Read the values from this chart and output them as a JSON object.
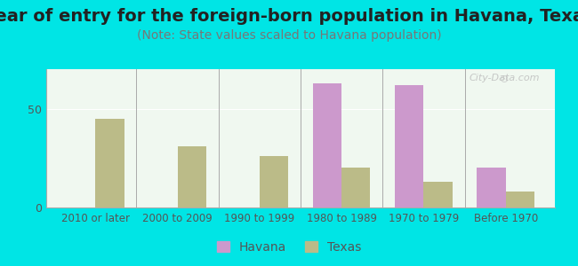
{
  "title": "Year of entry for the foreign-born population in Havana, Texas",
  "subtitle": "(Note: State values scaled to Havana population)",
  "categories": [
    "2010 or later",
    "2000 to 2009",
    "1990 to 1999",
    "1980 to 1989",
    "1970 to 1979",
    "Before 1970"
  ],
  "havana_values": [
    0,
    0,
    0,
    63,
    62,
    20
  ],
  "texas_values": [
    45,
    31,
    26,
    20,
    13,
    8
  ],
  "havana_color": "#cc99cc",
  "texas_color": "#bbbb88",
  "bg_outer": "#00e5e5",
  "bg_plot_top": "#f0f8f0",
  "bg_plot_bottom": "#e8f5e8",
  "ylabel_val": "50",
  "yticks": [
    0,
    50
  ],
  "ylim": [
    0,
    70
  ],
  "title_fontsize": 14,
  "subtitle_fontsize": 10,
  "watermark": "City-Data.com"
}
